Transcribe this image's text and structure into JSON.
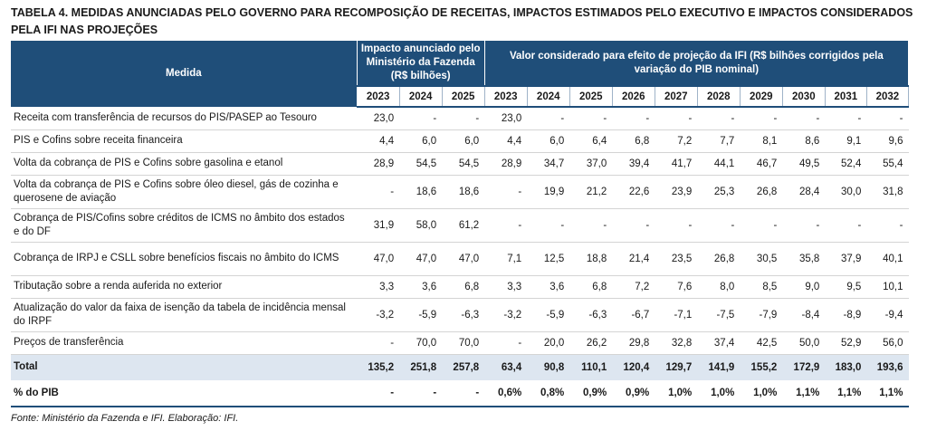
{
  "title": "TABELA 4. MEDIDAS ANUNCIADAS PELO GOVERNO PARA RECOMPOSIÇÃO DE RECEITAS, IMPACTOS ESTIMADOS PELO EXECUTIVO E IMPACTOS CONSIDERADOS PELA IFI NAS PROJEÇÕES",
  "header": {
    "medida": "Medida",
    "group1": "Impacto anunciado pelo Ministério da Fazenda (R$ bilhões)",
    "group2": "Valor considerado para efeito de projeção da IFI (R$ bilhões corrigidos pela variação do PIB nominal)",
    "years1": [
      "2023",
      "2024",
      "2025"
    ],
    "years2": [
      "2023",
      "2024",
      "2025",
      "2026",
      "2027",
      "2028",
      "2029",
      "2030",
      "2031",
      "2032"
    ]
  },
  "rows": [
    {
      "label": "Receita com transferência de recursos do PIS/PASEP ao Tesouro",
      "v": [
        "23,0",
        "-",
        "-",
        "23,0",
        "-",
        "-",
        "-",
        "-",
        "-",
        "-",
        "-",
        "-",
        "-"
      ]
    },
    {
      "label": "PIS e Cofins sobre receita financeira",
      "v": [
        "4,4",
        "6,0",
        "6,0",
        "4,4",
        "6,0",
        "6,4",
        "6,8",
        "7,2",
        "7,7",
        "8,1",
        "8,6",
        "9,1",
        "9,6"
      ]
    },
    {
      "label": "Volta da cobrança de PIS e Cofins sobre gasolina e etanol",
      "v": [
        "28,9",
        "54,5",
        "54,5",
        "28,9",
        "34,7",
        "37,0",
        "39,4",
        "41,7",
        "44,1",
        "46,7",
        "49,5",
        "52,4",
        "55,4"
      ]
    },
    {
      "label": "Volta da cobrança de PIS e Cofins sobre óleo diesel, gás de cozinha e querosene de aviação",
      "v": [
        "-",
        "18,6",
        "18,6",
        "-",
        "19,9",
        "21,2",
        "22,6",
        "23,9",
        "25,3",
        "26,8",
        "28,4",
        "30,0",
        "31,8"
      ]
    },
    {
      "label": "Cobrança de PIS/Cofins sobre créditos de ICMS no âmbito dos estados e do DF",
      "v": [
        "31,9",
        "58,0",
        "61,2",
        "-",
        "-",
        "-",
        "-",
        "-",
        "-",
        "-",
        "-",
        "-",
        "-"
      ]
    },
    {
      "label": "Cobrança de IRPJ e CSLL sobre benefícios fiscais no âmbito do ICMS",
      "v": [
        "47,0",
        "47,0",
        "47,0",
        "7,1",
        "12,5",
        "18,8",
        "21,4",
        "23,5",
        "26,8",
        "30,5",
        "35,8",
        "37,9",
        "40,1"
      ]
    },
    {
      "label": "Tributação sobre a renda auferida no exterior",
      "v": [
        "3,3",
        "3,6",
        "6,8",
        "3,3",
        "3,6",
        "6,8",
        "7,2",
        "7,6",
        "8,0",
        "8,5",
        "9,0",
        "9,5",
        "10,1"
      ]
    },
    {
      "label": "Atualização do valor da faixa de isenção da tabela de incidência mensal do IRPF",
      "v": [
        "-3,2",
        "-5,9",
        "-6,3",
        "-3,2",
        "-5,9",
        "-6,3",
        "-6,7",
        "-7,1",
        "-7,5",
        "-7,9",
        "-8,4",
        "-8,9",
        "-9,4"
      ]
    },
    {
      "label": "Preços de transferência",
      "v": [
        "-",
        "70,0",
        "70,0",
        "-",
        "20,0",
        "26,2",
        "29,8",
        "32,8",
        "37,4",
        "42,5",
        "50,0",
        "52,9",
        "56,0"
      ]
    }
  ],
  "total": {
    "label": "Total",
    "v": [
      "135,2",
      "251,8",
      "257,8",
      "63,4",
      "90,8",
      "110,1",
      "120,4",
      "129,7",
      "141,9",
      "155,2",
      "172,9",
      "183,0",
      "193,6"
    ]
  },
  "pct": {
    "label": "% do PIB",
    "v": [
      "-",
      "-",
      "-",
      "0,6%",
      "0,8%",
      "0,9%",
      "0,9%",
      "1,0%",
      "1,0%",
      "1,0%",
      "1,1%",
      "1,1%",
      "1,1%"
    ]
  },
  "source": "Fonte: Ministério da Fazenda e IFI. Elaboração: IFI."
}
